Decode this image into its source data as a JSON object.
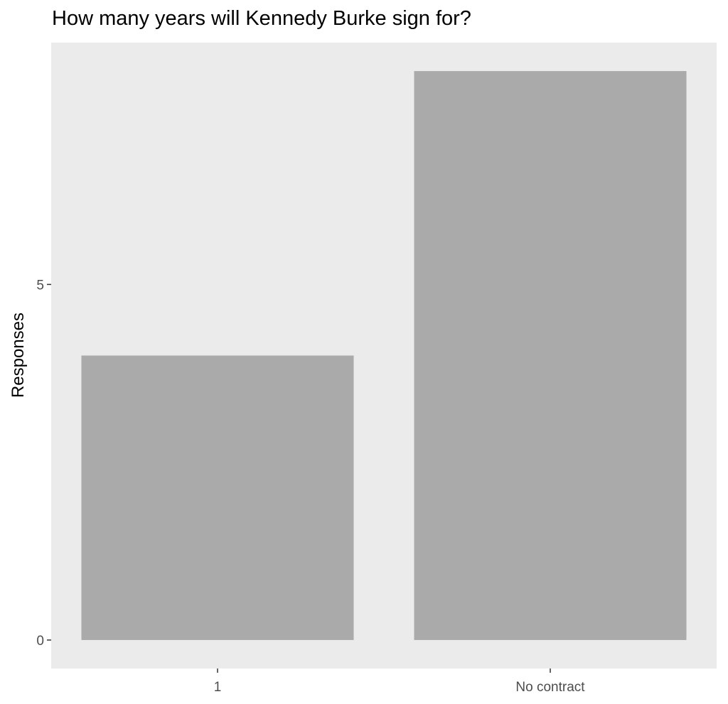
{
  "chart_data": {
    "type": "bar",
    "title": "How many years will Kennedy Burke sign for?",
    "xlabel": "",
    "ylabel": "Responses",
    "categories": [
      "1",
      "No contract"
    ],
    "values": [
      4,
      8
    ],
    "ylim": [
      -0.4,
      8.4
    ],
    "yticks": [
      0,
      5
    ],
    "grid": false,
    "colors": {
      "bar": "#AAAAAA",
      "panel": "#EBEBEB",
      "tick_text": "#4D4D4D"
    }
  }
}
